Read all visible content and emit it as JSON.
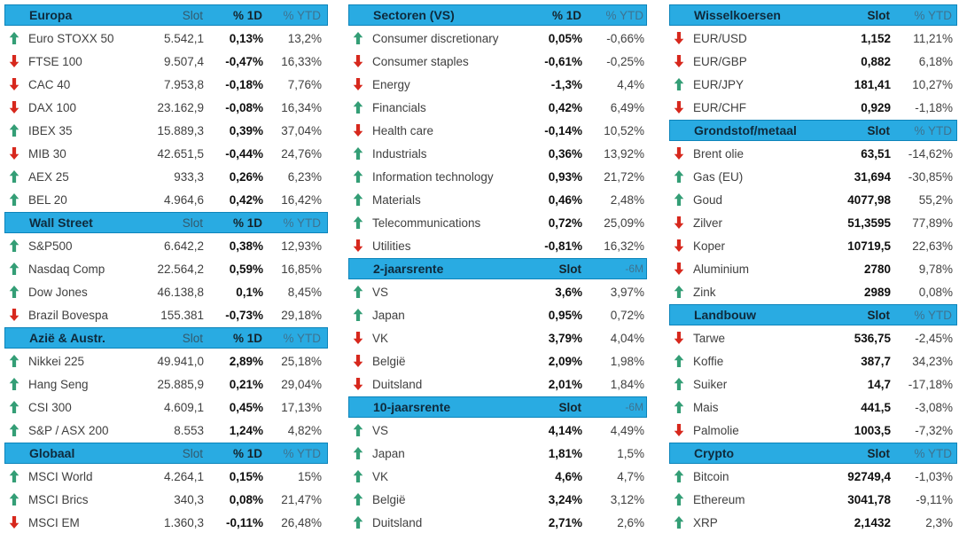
{
  "palette": {
    "header_bg": "#29ABE2",
    "header_border": "#0D84BA",
    "title_color": "#0E2A3C",
    "col_label": "#33596C",
    "col_label_bold": "#15242C",
    "col_label_muted": "#3E7390",
    "text_color": "#404040",
    "value_bold": "#0F0F0F",
    "up_color": "#349E76",
    "down_color": "#D7281D"
  },
  "icons": {
    "up": {
      "name": "up-arrow-icon",
      "glyph": "⬆"
    },
    "down": {
      "name": "down-arrow-icon",
      "glyph": "⬇"
    }
  },
  "chart_data": [
    {
      "type": "table",
      "group": "left",
      "title": "Europa",
      "headers": [
        "Slot",
        "% 1D",
        "% YTD"
      ],
      "bold_value_index": 1,
      "rows": [
        [
          "up",
          "Euro STOXX 50",
          "5.542,1",
          "0,13%",
          "13,2%"
        ],
        [
          "down",
          "FTSE 100",
          "9.507,4",
          "-0,47%",
          "16,33%"
        ],
        [
          "down",
          "CAC 40",
          "7.953,8",
          "-0,18%",
          "7,76%"
        ],
        [
          "down",
          "DAX 100",
          "23.162,9",
          "-0,08%",
          "16,34%"
        ],
        [
          "up",
          "IBEX 35",
          "15.889,3",
          "0,39%",
          "37,04%"
        ],
        [
          "down",
          "MIB 30",
          "42.651,5",
          "-0,44%",
          "24,76%"
        ],
        [
          "up",
          "AEX 25",
          "933,3",
          "0,26%",
          "6,23%"
        ],
        [
          "up",
          "BEL 20",
          "4.964,6",
          "0,42%",
          "16,42%"
        ]
      ]
    },
    {
      "type": "table",
      "group": "left",
      "title": "Wall Street",
      "headers": [
        "Slot",
        "% 1D",
        "% YTD"
      ],
      "bold_value_index": 1,
      "rows": [
        [
          "up",
          "S&P500",
          "6.642,2",
          "0,38%",
          "12,93%"
        ],
        [
          "up",
          "Nasdaq Comp",
          "22.564,2",
          "0,59%",
          "16,85%"
        ],
        [
          "up",
          "Dow Jones",
          "46.138,8",
          "0,1%",
          "8,45%"
        ],
        [
          "down",
          "Brazil Bovespa",
          "155.381",
          "-0,73%",
          "29,18%"
        ]
      ]
    },
    {
      "type": "table",
      "group": "left",
      "title": "Azië & Austr.",
      "headers": [
        "Slot",
        "% 1D",
        "% YTD"
      ],
      "bold_value_index": 1,
      "rows": [
        [
          "up",
          "Nikkei 225",
          "49.941,0",
          "2,89%",
          "25,18%"
        ],
        [
          "up",
          "Hang Seng",
          "25.885,9",
          "0,21%",
          "29,04%"
        ],
        [
          "up",
          "CSI 300",
          "4.609,1",
          "0,45%",
          "17,13%"
        ],
        [
          "up",
          "S&P / ASX 200",
          "8.553",
          "1,24%",
          "4,82%"
        ]
      ]
    },
    {
      "type": "table",
      "group": "left",
      "title": "Globaal",
      "headers": [
        "Slot",
        "% 1D",
        "% YTD"
      ],
      "bold_value_index": 1,
      "rows": [
        [
          "up",
          "MSCI World",
          "4.264,1",
          "0,15%",
          "15%"
        ],
        [
          "up",
          "MSCI Brics",
          "340,3",
          "0,08%",
          "21,47%"
        ],
        [
          "down",
          "MSCI EM",
          "1.360,3",
          "-0,11%",
          "26,48%"
        ]
      ]
    },
    {
      "type": "table",
      "group": "mid",
      "title": "Sectoren (VS)",
      "headers": [
        "% 1D",
        "% YTD"
      ],
      "bold_value_index": 0,
      "rows": [
        [
          "up",
          "Consumer discretionary",
          "0,05%",
          "-0,66%"
        ],
        [
          "down",
          "Consumer staples",
          "-0,61%",
          "-0,25%"
        ],
        [
          "down",
          "Energy",
          "-1,3%",
          "4,4%"
        ],
        [
          "up",
          "Financials",
          "0,42%",
          "6,49%"
        ],
        [
          "down",
          "Health care",
          "-0,14%",
          "10,52%"
        ],
        [
          "up",
          "Industrials",
          "0,36%",
          "13,92%"
        ],
        [
          "up",
          "Information technology",
          "0,93%",
          "21,72%"
        ],
        [
          "up",
          "Materials",
          "0,46%",
          "2,48%"
        ],
        [
          "up",
          "Telecommunications",
          "0,72%",
          "25,09%"
        ],
        [
          "down",
          "Utilities",
          "-0,81%",
          "16,32%"
        ]
      ]
    },
    {
      "type": "table",
      "group": "mid",
      "title": "2-jaarsrente",
      "headers": [
        "Slot",
        "-6M"
      ],
      "bold_value_index": 0,
      "last_header_small": true,
      "rows": [
        [
          "up",
          "VS",
          "3,6%",
          "3,97%"
        ],
        [
          "up",
          "Japan",
          "0,95%",
          "0,72%"
        ],
        [
          "down",
          "VK",
          "3,79%",
          "4,04%"
        ],
        [
          "down",
          "België",
          "2,09%",
          "1,98%"
        ],
        [
          "down",
          "Duitsland",
          "2,01%",
          "1,84%"
        ]
      ]
    },
    {
      "type": "table",
      "group": "mid",
      "title": "10-jaarsrente",
      "headers": [
        "Slot",
        "-6M"
      ],
      "bold_value_index": 0,
      "last_header_small": true,
      "rows": [
        [
          "up",
          "VS",
          "4,14%",
          "4,49%"
        ],
        [
          "up",
          "Japan",
          "1,81%",
          "1,5%"
        ],
        [
          "up",
          "VK",
          "4,6%",
          "4,7%"
        ],
        [
          "up",
          "België",
          "3,24%",
          "3,12%"
        ],
        [
          "up",
          "Duitsland",
          "2,71%",
          "2,6%"
        ]
      ]
    },
    {
      "type": "table",
      "group": "right",
      "title": "Wisselkoersen",
      "headers": [
        "Slot",
        "% YTD"
      ],
      "bold_value_index": 0,
      "rows": [
        [
          "down",
          "EUR/USD",
          "1,152",
          "11,21%"
        ],
        [
          "down",
          "EUR/GBP",
          "0,882",
          "6,18%"
        ],
        [
          "up",
          "EUR/JPY",
          "181,41",
          "10,27%"
        ],
        [
          "down",
          "EUR/CHF",
          "0,929",
          "-1,18%"
        ]
      ]
    },
    {
      "type": "table",
      "group": "right",
      "title": "Grondstof/metaal",
      "headers": [
        "Slot",
        "% YTD"
      ],
      "bold_value_index": 0,
      "rows": [
        [
          "down",
          "Brent olie",
          "63,51",
          "-14,62%"
        ],
        [
          "up",
          "Gas (EU)",
          "31,694",
          "-30,85%"
        ],
        [
          "up",
          "Goud",
          "4077,98",
          "55,2%"
        ],
        [
          "down",
          "Zilver",
          "51,3595",
          "77,89%"
        ],
        [
          "down",
          "Koper",
          "10719,5",
          "22,63%"
        ],
        [
          "down",
          "Aluminium",
          "2780",
          "9,78%"
        ],
        [
          "up",
          "Zink",
          "2989",
          "0,08%"
        ]
      ]
    },
    {
      "type": "table",
      "group": "right",
      "title": "Landbouw",
      "headers": [
        "Slot",
        "% YTD"
      ],
      "bold_value_index": 0,
      "rows": [
        [
          "down",
          "Tarwe",
          "536,75",
          "-2,45%"
        ],
        [
          "up",
          "Koffie",
          "387,7",
          "34,23%"
        ],
        [
          "up",
          "Suiker",
          "14,7",
          "-17,18%"
        ],
        [
          "up",
          "Mais",
          "441,5",
          "-3,08%"
        ],
        [
          "down",
          "Palmolie",
          "1003,5",
          "-7,32%"
        ]
      ]
    },
    {
      "type": "table",
      "group": "right",
      "title": "Crypto",
      "headers": [
        "Slot",
        "% YTD"
      ],
      "bold_value_index": 0,
      "rows": [
        [
          "up",
          "Bitcoin",
          "92749,4",
          "-1,03%"
        ],
        [
          "up",
          "Ethereum",
          "3041,78",
          "-9,11%"
        ],
        [
          "up",
          "XRP",
          "2,1432",
          "2,3%"
        ]
      ]
    }
  ]
}
